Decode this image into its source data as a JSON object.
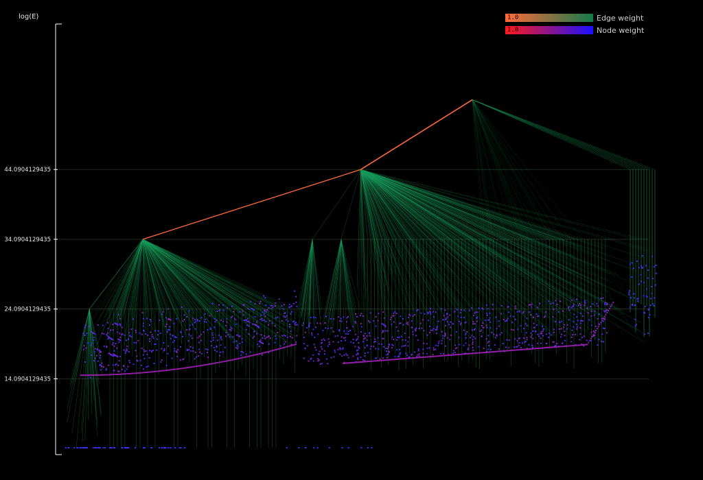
{
  "chart_data": {
    "type": "dendrogram",
    "ylabel": "log(E)",
    "ytick_labels": [
      "14.0904129435",
      "24.0904129435",
      "34.0904129435",
      "44.0904129435"
    ],
    "ytick_values": [
      14.0904129435,
      24.0904129435,
      34.0904129435,
      44.0904129435
    ],
    "ylim": [
      4.2,
      65
    ],
    "grid": true,
    "legend_position": "top-right",
    "legend": [
      {
        "label": "Edge weight",
        "value": "1.0",
        "from_color": "#ff6a3d",
        "to_color": "#137a4a"
      },
      {
        "label": "Node weight",
        "value": "1.0",
        "from_color": "#ff1a1a",
        "to_color": "#1a10ff"
      }
    ],
    "colors": {
      "background": "#000000",
      "strong_edge": "#ff6a3d",
      "weak_edge": "#1b9c5c",
      "node_low": "#9b1ea6",
      "node_high": "#3b2cff",
      "grid": "#1f2a22",
      "axis": "#ffffff"
    },
    "hierarchy": {
      "root": {
        "x_index": 0.688,
        "y": 54.1
      },
      "level_44": [
        {
          "x_index": 0.5,
          "y": 44.09
        }
      ],
      "level_34": [
        {
          "x_index": 0.133,
          "y": 34.09
        }
      ],
      "level_24": [
        {
          "x_index": 0.043,
          "y": 24.09
        }
      ],
      "leaf_baseline_y": 4.2
    }
  }
}
